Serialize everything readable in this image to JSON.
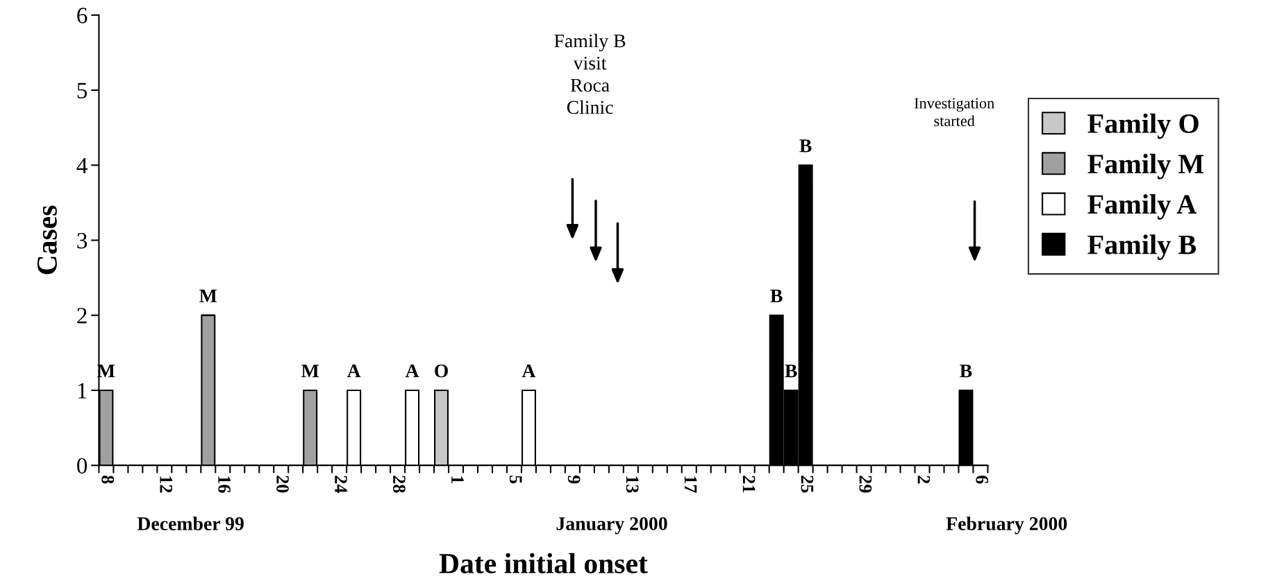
{
  "chart_data": {
    "type": "bar",
    "stacked": true,
    "xlabel": "Date initial onset",
    "ylabel": "Cases",
    "categories": [
      "8",
      null,
      null,
      null,
      "12",
      null,
      null,
      null,
      "16",
      null,
      null,
      null,
      "20",
      null,
      null,
      null,
      "24",
      null,
      null,
      null,
      "28",
      null,
      null,
      null,
      "1",
      null,
      null,
      null,
      "5",
      null,
      null,
      null,
      "9",
      null,
      null,
      null,
      "13",
      null,
      null,
      null,
      "17",
      null,
      null,
      null,
      "21",
      null,
      null,
      null,
      "25",
      null,
      null,
      null,
      "29",
      null,
      null,
      null,
      "2",
      null,
      null,
      null,
      "6"
    ],
    "series": [
      {
        "name": "Family O",
        "color": "#c8c8c8",
        "values": [
          0,
          0,
          0,
          0,
          0,
          0,
          0,
          0,
          0,
          0,
          0,
          0,
          0,
          0,
          0,
          0,
          0,
          0,
          0,
          0,
          0,
          0,
          0,
          1,
          0,
          0,
          0,
          0,
          0,
          0,
          0,
          0,
          0,
          0,
          0,
          0,
          0,
          0,
          0,
          0,
          0,
          0,
          0,
          0,
          0,
          0,
          0,
          0,
          0,
          0,
          0,
          0,
          0,
          0,
          0,
          0,
          0,
          0,
          0,
          0,
          0
        ],
        "value_labels": [
          null,
          null,
          null,
          null,
          null,
          null,
          null,
          null,
          null,
          null,
          null,
          null,
          null,
          null,
          null,
          null,
          null,
          null,
          null,
          null,
          null,
          null,
          null,
          "O",
          null,
          null,
          null,
          null,
          null,
          null,
          null,
          null,
          null,
          null,
          null,
          null,
          null,
          null,
          null,
          null,
          null,
          null,
          null,
          null,
          null,
          null,
          null,
          null,
          null,
          null,
          null,
          null,
          null,
          null,
          null,
          null,
          null,
          null,
          null,
          null,
          null
        ]
      },
      {
        "name": "Family M",
        "color": "#a0a0a0",
        "values": [
          1,
          0,
          0,
          0,
          0,
          0,
          0,
          2,
          0,
          0,
          0,
          0,
          0,
          0,
          1,
          0,
          0,
          0,
          0,
          0,
          0,
          0,
          0,
          0,
          0,
          0,
          0,
          0,
          0,
          0,
          0,
          0,
          0,
          0,
          0,
          0,
          0,
          0,
          0,
          0,
          0,
          0,
          0,
          0,
          0,
          0,
          0,
          0,
          0,
          0,
          0,
          0,
          0,
          0,
          0,
          0,
          0,
          0,
          0,
          0,
          0
        ],
        "value_labels": [
          "M",
          null,
          null,
          null,
          null,
          null,
          null,
          "M",
          null,
          null,
          null,
          null,
          null,
          null,
          "M",
          null,
          null,
          null,
          null,
          null,
          null,
          null,
          null,
          null,
          null,
          null,
          null,
          null,
          null,
          null,
          null,
          null,
          null,
          null,
          null,
          null,
          null,
          null,
          null,
          null,
          null,
          null,
          null,
          null,
          null,
          null,
          null,
          null,
          null,
          null,
          null,
          null,
          null,
          null,
          null,
          null,
          null,
          null,
          null,
          null,
          null
        ]
      },
      {
        "name": "Family A",
        "color": "#ffffff",
        "values": [
          0,
          0,
          0,
          0,
          0,
          0,
          0,
          0,
          0,
          0,
          0,
          0,
          0,
          0,
          0,
          0,
          0,
          1,
          0,
          0,
          0,
          1,
          0,
          0,
          0,
          0,
          0,
          0,
          0,
          1,
          0,
          0,
          0,
          0,
          0,
          0,
          0,
          0,
          0,
          0,
          0,
          0,
          0,
          0,
          0,
          0,
          0,
          0,
          0,
          0,
          0,
          0,
          0,
          0,
          0,
          0,
          0,
          0,
          0,
          0,
          0
        ],
        "value_labels": [
          null,
          null,
          null,
          null,
          null,
          null,
          null,
          null,
          null,
          null,
          null,
          null,
          null,
          null,
          null,
          null,
          null,
          "A",
          null,
          null,
          null,
          "A",
          null,
          null,
          null,
          null,
          null,
          null,
          null,
          "A",
          null,
          null,
          null,
          null,
          null,
          null,
          null,
          null,
          null,
          null,
          null,
          null,
          null,
          null,
          null,
          null,
          null,
          null,
          null,
          null,
          null,
          null,
          null,
          null,
          null,
          null,
          null,
          null,
          null,
          null,
          null
        ]
      },
      {
        "name": "Family B",
        "color": "#000000",
        "values": [
          0,
          0,
          0,
          0,
          0,
          0,
          0,
          0,
          0,
          0,
          0,
          0,
          0,
          0,
          0,
          0,
          0,
          0,
          0,
          0,
          0,
          0,
          0,
          0,
          0,
          0,
          0,
          0,
          0,
          0,
          0,
          0,
          0,
          0,
          0,
          0,
          0,
          0,
          0,
          0,
          0,
          0,
          0,
          0,
          0,
          0,
          2,
          1,
          4,
          0,
          0,
          0,
          0,
          0,
          0,
          0,
          0,
          0,
          0,
          1,
          0
        ],
        "value_labels": [
          null,
          null,
          null,
          null,
          null,
          null,
          null,
          null,
          null,
          null,
          null,
          null,
          null,
          null,
          null,
          null,
          null,
          null,
          null,
          null,
          null,
          null,
          null,
          null,
          null,
          null,
          null,
          null,
          null,
          null,
          null,
          null,
          null,
          null,
          null,
          null,
          null,
          null,
          null,
          null,
          null,
          null,
          null,
          null,
          null,
          null,
          "B",
          "B",
          "B",
          null,
          null,
          null,
          null,
          null,
          null,
          null,
          null,
          null,
          null,
          "B",
          null
        ]
      }
    ],
    "ylim": [
      0,
      6
    ],
    "yticks": [
      0,
      1,
      2,
      3,
      4,
      5,
      6
    ],
    "legend": "right",
    "grid": false,
    "annotations": [
      "Family B\nvisit\nRoca\nClinic",
      "Investigation\nstarted",
      "December 99",
      "January 2000",
      "February 2000"
    ]
  }
}
